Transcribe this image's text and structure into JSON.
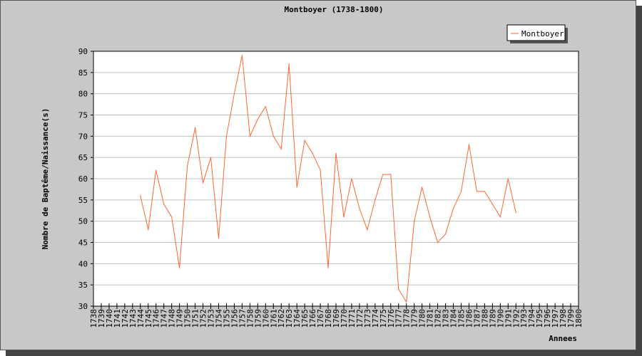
{
  "chart_data": {
    "type": "line",
    "title": "Montboyer (1738-1800)",
    "xlabel": "Annees",
    "ylabel": "Nombre de Baptême/Naissance(s)",
    "ylim": [
      30,
      90
    ],
    "yticks": [
      30,
      35,
      40,
      45,
      50,
      55,
      60,
      65,
      70,
      75,
      80,
      85,
      90
    ],
    "xlim": [
      1738,
      1800
    ],
    "grid": true,
    "legend_position": "top-right",
    "colors": {
      "series": "#ff6633",
      "background": "#c8c8c8",
      "plot_area": "#ffffff",
      "grid": "#c0c0c0"
    },
    "series": [
      {
        "name": "Montboyer",
        "x": [
          1744,
          1745,
          1746,
          1747,
          1748,
          1749,
          1750,
          1751,
          1752,
          1753,
          1754,
          1755,
          1756,
          1757,
          1758,
          1759,
          1760,
          1761,
          1762,
          1763,
          1764,
          1765,
          1766,
          1767,
          1768,
          1769,
          1770,
          1771,
          1772,
          1773,
          1774,
          1775,
          1776,
          1777,
          1778,
          1779,
          1780,
          1781,
          1782,
          1783,
          1784,
          1785,
          1786,
          1787,
          1788,
          1789,
          1790,
          1791,
          1792
        ],
        "values": [
          56,
          48,
          62,
          54,
          51,
          39,
          63,
          72,
          59,
          65,
          46,
          70,
          80,
          89,
          70,
          74,
          77,
          70,
          67,
          87,
          58,
          69,
          66,
          62,
          39,
          66,
          51,
          60,
          53,
          48,
          55,
          61,
          61,
          34,
          31,
          50,
          58,
          51,
          45,
          47,
          53,
          57,
          68,
          57,
          57,
          54,
          51,
          60,
          52
        ]
      }
    ]
  }
}
